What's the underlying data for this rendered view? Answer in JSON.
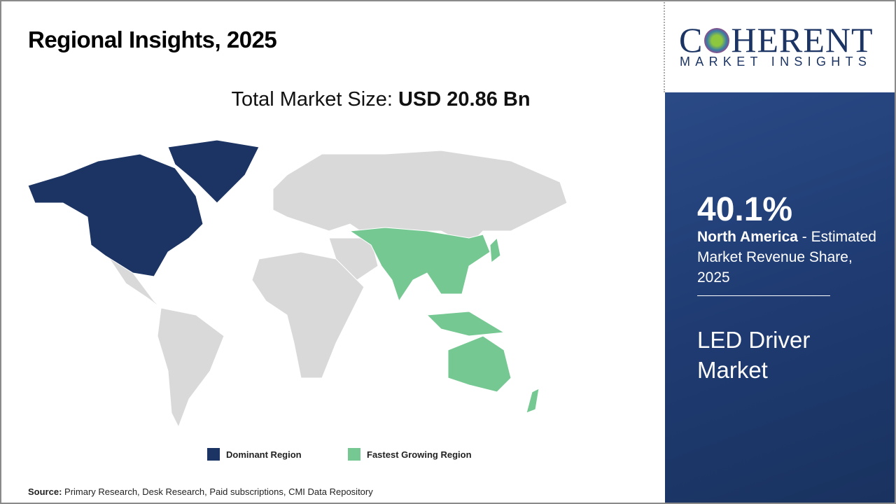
{
  "header": {
    "title": "Regional Insights, 2025"
  },
  "total": {
    "label": "Total Market Size:",
    "value": "USD 20.86 Bn"
  },
  "legend": [
    {
      "label": "Dominant Region",
      "color": "#1b3463"
    },
    {
      "label": "Fastest Growing Region",
      "color": "#76c893"
    }
  ],
  "map": {
    "base_color": "#d9d9d9",
    "dominant": "North America",
    "fastest": "Asia Pacific"
  },
  "source": {
    "label": "Source:",
    "text": "Primary Research, Desk Research, Paid subscriptions, CMI Data Repository"
  },
  "logo": {
    "name": "COHERENT",
    "tagline": "MARKET INSIGHTS"
  },
  "panel": {
    "share": "40.1%",
    "region": "North America",
    "desc": " - Estimated Market Revenue Share, 2025",
    "market": "LED Driver Market"
  }
}
